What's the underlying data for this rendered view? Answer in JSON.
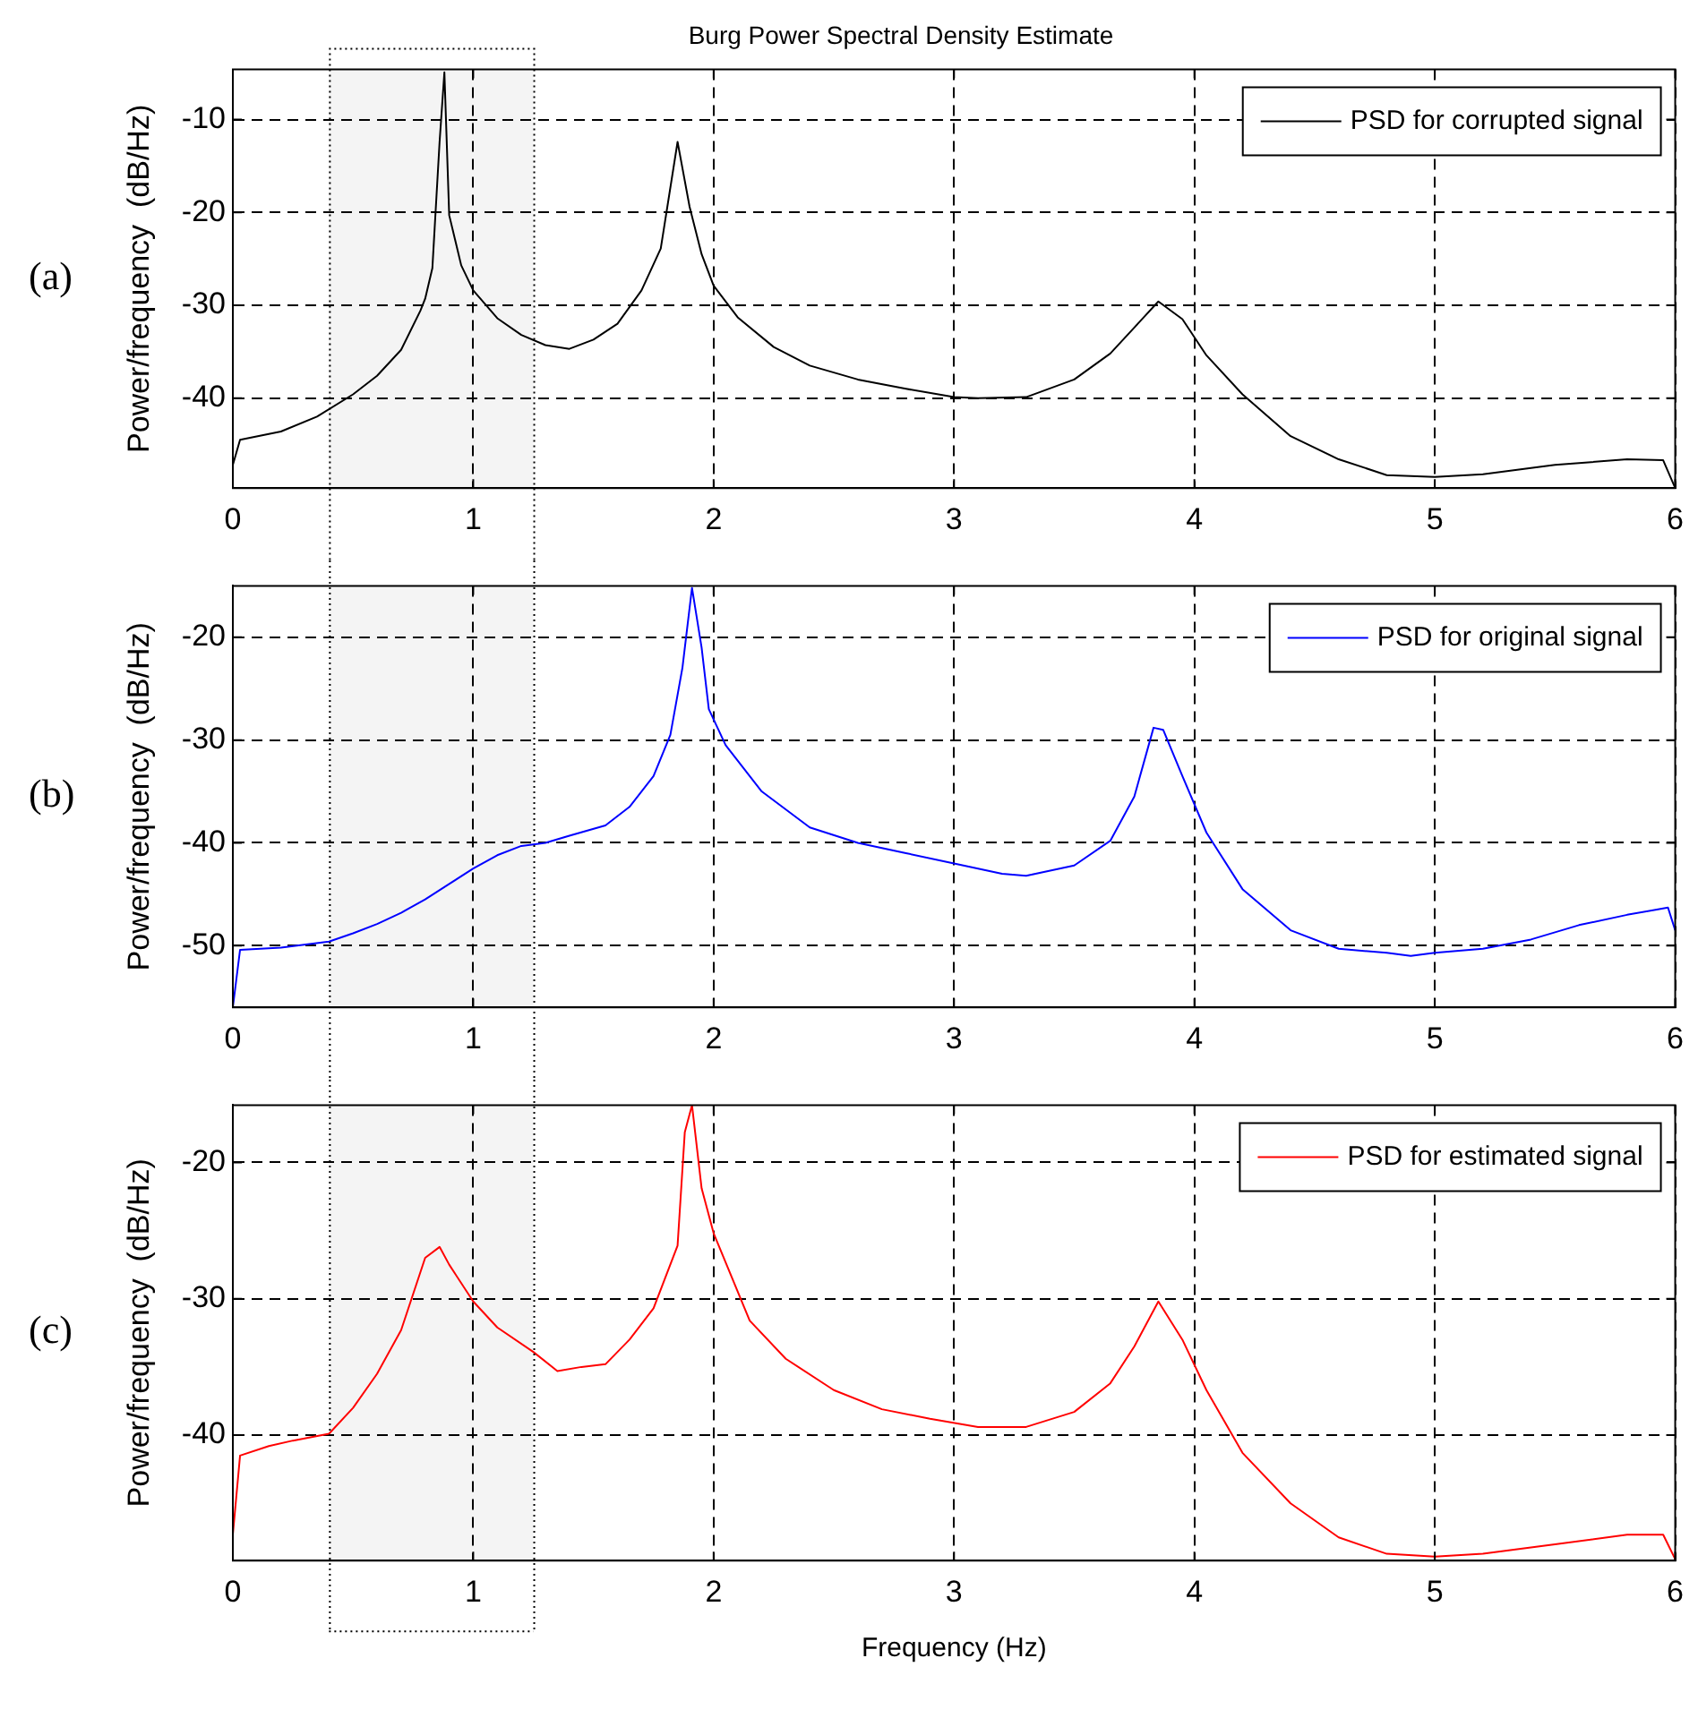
{
  "chart_data": [
    {
      "type": "line",
      "title": "Burg Power Spectral Density Estimate",
      "ylabel": "Power/frequency  (dB/Hz)",
      "annotations": [
        "(a)"
      ],
      "x": [
        0,
        0.03,
        0.2,
        0.35,
        0.5,
        0.6,
        0.7,
        0.78,
        0.8,
        0.83,
        0.86,
        0.88,
        0.9,
        0.95,
        1.0,
        1.1,
        1.2,
        1.3,
        1.4,
        1.5,
        1.6,
        1.7,
        1.78,
        1.85,
        1.9,
        1.95,
        2.0,
        2.1,
        2.25,
        2.4,
        2.6,
        2.8,
        3.0,
        3.1,
        3.3,
        3.5,
        3.65,
        3.75,
        3.85,
        3.95,
        4.05,
        4.2,
        4.4,
        4.6,
        4.8,
        5.0,
        5.2,
        5.5,
        5.8,
        5.95,
        6.0
      ],
      "series": [
        {
          "name": "PSD for corrupted signal",
          "color": "#000000",
          "values": [
            -47.2,
            -44.5,
            -43.6,
            -42,
            -39.6,
            -37.6,
            -34.8,
            -30.6,
            -29.3,
            -26,
            -12.4,
            -4.9,
            -20.3,
            -25.7,
            -28.4,
            -31.4,
            -33.2,
            -34.3,
            -34.7,
            -33.7,
            -32,
            -28.4,
            -23.9,
            -12.4,
            -19.4,
            -24.5,
            -27.9,
            -31.3,
            -34.5,
            -36.5,
            -38,
            -39,
            -39.9,
            -40,
            -39.9,
            -38,
            -35.2,
            -32.4,
            -29.6,
            -31.5,
            -35.4,
            -39.6,
            -44.1,
            -46.6,
            -48.3,
            -48.5,
            -48.2,
            -47.2,
            -46.6,
            -46.7,
            -49.7
          ]
        }
      ],
      "xlim": [
        0,
        6
      ],
      "xticks": [
        0,
        1,
        2,
        3,
        4,
        5,
        6
      ],
      "ylim": [
        -49.7,
        -4.6
      ],
      "yticks": [
        -40,
        -30,
        -20,
        -10
      ],
      "grid": true,
      "bands": [
        {
          "axis": "x",
          "from": 0.4,
          "to": 1.25,
          "color": "#f4f4f4"
        }
      ],
      "legend": "top right"
    },
    {
      "type": "line",
      "ylabel": "Power/frequency  (dB/Hz)",
      "annotations": [
        "(b)"
      ],
      "x": [
        0,
        0.03,
        0.2,
        0.4,
        0.5,
        0.6,
        0.7,
        0.8,
        0.9,
        1.0,
        1.1,
        1.2,
        1.3,
        1.4,
        1.55,
        1.65,
        1.75,
        1.82,
        1.87,
        1.91,
        1.95,
        1.98,
        2.05,
        2.2,
        2.4,
        2.6,
        2.8,
        3.0,
        3.2,
        3.3,
        3.5,
        3.65,
        3.75,
        3.83,
        3.87,
        3.95,
        4.05,
        4.2,
        4.4,
        4.6,
        4.8,
        4.9,
        5.0,
        5.2,
        5.4,
        5.6,
        5.8,
        5.97,
        6.0
      ],
      "series": [
        {
          "name": "PSD for original signal",
          "color": "#0000ff",
          "values": [
            -56,
            -50.4,
            -50.2,
            -49.6,
            -48.8,
            -47.9,
            -46.8,
            -45.5,
            -44,
            -42.5,
            -41.2,
            -40.3,
            -40,
            -39.3,
            -38.3,
            -36.5,
            -33.5,
            -29.5,
            -23,
            -15.2,
            -21,
            -27,
            -30.5,
            -35,
            -38.5,
            -40,
            -41,
            -42,
            -43,
            -43.2,
            -42.2,
            -39.8,
            -35.5,
            -28.8,
            -29,
            -33.5,
            -39,
            -44.5,
            -48.5,
            -50.3,
            -50.7,
            -51,
            -50.7,
            -50.3,
            -49.4,
            -48,
            -47,
            -46.3,
            -48.5
          ]
        }
      ],
      "xlim": [
        0,
        6
      ],
      "xticks": [
        0,
        1,
        2,
        3,
        4,
        5,
        6
      ],
      "ylim": [
        -56,
        -15
      ],
      "yticks": [
        -50,
        -40,
        -30,
        -20
      ],
      "grid": true,
      "bands": [
        {
          "axis": "x",
          "from": 0.4,
          "to": 1.25,
          "color": "#f4f4f4"
        }
      ],
      "legend": "top right"
    },
    {
      "type": "line",
      "xlabel": "Frequency (Hz)",
      "ylabel": "Power/frequency  (dB/Hz)",
      "annotations": [
        "(c)"
      ],
      "x": [
        0,
        0.03,
        0.15,
        0.25,
        0.4,
        0.5,
        0.6,
        0.7,
        0.8,
        0.86,
        0.9,
        1.0,
        1.1,
        1.25,
        1.35,
        1.45,
        1.55,
        1.65,
        1.75,
        1.85,
        1.88,
        1.91,
        1.95,
        2.0,
        2.15,
        2.3,
        2.5,
        2.7,
        2.9,
        3.1,
        3.3,
        3.5,
        3.65,
        3.75,
        3.85,
        3.95,
        4.05,
        4.2,
        4.4,
        4.6,
        4.8,
        5.0,
        5.2,
        5.5,
        5.8,
        5.95,
        6.0
      ],
      "series": [
        {
          "name": "PSD for estimated signal",
          "color": "#ff0000",
          "values": [
            -47.3,
            -41.5,
            -40.8,
            -40.4,
            -39.9,
            -38,
            -35.5,
            -32.3,
            -27,
            -26.2,
            -27.5,
            -30.2,
            -32.1,
            -33.9,
            -35.3,
            -35,
            -34.8,
            -33,
            -30.7,
            -26.1,
            -17.8,
            -15.8,
            -21.9,
            -25.2,
            -31.6,
            -34.4,
            -36.7,
            -38.1,
            -38.8,
            -39.4,
            -39.4,
            -38.3,
            -36.2,
            -33.5,
            -30.2,
            -33,
            -36.7,
            -41.3,
            -45,
            -47.5,
            -48.7,
            -48.9,
            -48.7,
            -48,
            -47.3,
            -47.3,
            -49.1
          ]
        }
      ],
      "xlim": [
        0,
        6
      ],
      "xticks": [
        0,
        1,
        2,
        3,
        4,
        5,
        6
      ],
      "ylim": [
        -49.2,
        -15.8
      ],
      "yticks": [
        -40,
        -30,
        -20
      ],
      "grid": true,
      "bands": [
        {
          "axis": "x",
          "from": 0.4,
          "to": 1.25,
          "color": "#f4f4f4"
        }
      ],
      "legend": "top right"
    }
  ]
}
